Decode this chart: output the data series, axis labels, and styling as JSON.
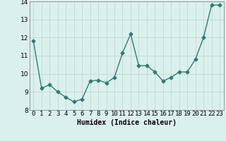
{
  "x": [
    0,
    1,
    2,
    3,
    4,
    5,
    6,
    7,
    8,
    9,
    10,
    11,
    12,
    13,
    14,
    15,
    16,
    17,
    18,
    19,
    20,
    21,
    22,
    23
  ],
  "y": [
    11.8,
    9.2,
    9.4,
    9.0,
    8.7,
    8.45,
    8.6,
    9.6,
    9.65,
    9.5,
    9.8,
    11.15,
    12.2,
    10.45,
    10.45,
    10.1,
    9.6,
    9.8,
    10.1,
    10.1,
    10.8,
    12.0,
    13.8,
    13.8
  ],
  "line_color": "#2e7d6e",
  "marker": "D",
  "marker_size": 2.5,
  "linewidth": 1.0,
  "bg_color": "#daf0ed",
  "grid_color": "#c0d8d4",
  "xlabel": "Humidex (Indice chaleur)",
  "xlabel_fontsize": 7,
  "xlim": [
    -0.5,
    23.5
  ],
  "ylim": [
    8.0,
    14.0
  ],
  "yticks": [
    8,
    9,
    10,
    11,
    12,
    13,
    14
  ],
  "xtick_labels": [
    "0",
    "1",
    "2",
    "3",
    "4",
    "5",
    "6",
    "7",
    "8",
    "9",
    "10",
    "11",
    "12",
    "13",
    "14",
    "15",
    "16",
    "17",
    "18",
    "19",
    "20",
    "21",
    "22",
    "23"
  ],
  "tick_fontsize": 6.5,
  "spine_color": "#888888"
}
